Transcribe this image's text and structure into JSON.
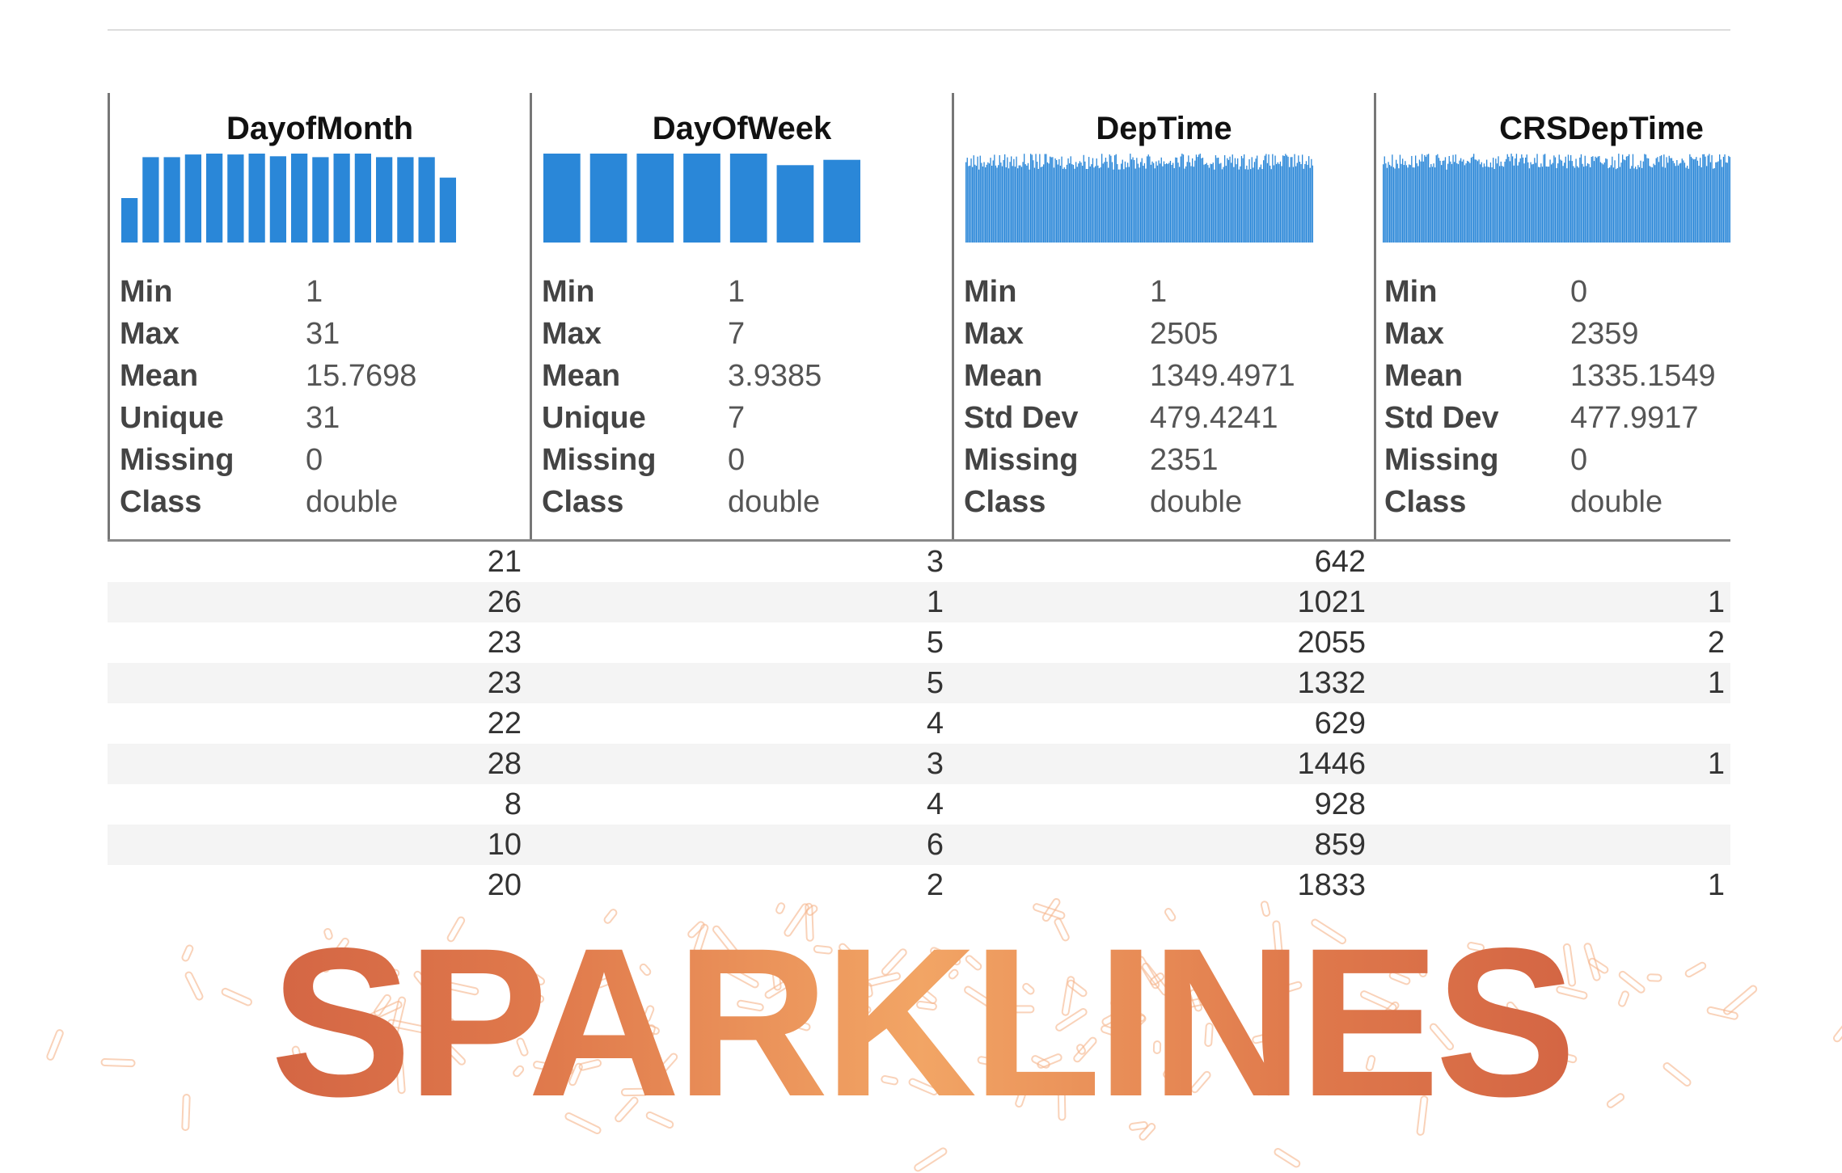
{
  "overlay_title": "SPARKLINES",
  "accent_color": "#2a87d8",
  "overlay_color": "#e07a4c",
  "columns": [
    {
      "title": "DayofMonth",
      "histogram": [
        0.5,
        0.96,
        0.96,
        0.99,
        1,
        0.99,
        1,
        0.97,
        1,
        0.96,
        1,
        1,
        0.96,
        0.96,
        0.96,
        0.73
      ],
      "stats": [
        {
          "label": "Min",
          "value": "1"
        },
        {
          "label": "Max",
          "value": "31"
        },
        {
          "label": "Mean",
          "value": "15.7698"
        },
        {
          "label": "Unique",
          "value": "31"
        },
        {
          "label": "Missing",
          "value": "0"
        },
        {
          "label": "Class",
          "value": "double"
        }
      ]
    },
    {
      "title": "DayOfWeek",
      "histogram": [
        1,
        1,
        1,
        1,
        1,
        0.87,
        0.93
      ],
      "stats": [
        {
          "label": "Min",
          "value": "1"
        },
        {
          "label": "Max",
          "value": "7"
        },
        {
          "label": "Mean",
          "value": "3.9385"
        },
        {
          "label": "Unique",
          "value": "7"
        },
        {
          "label": "Missing",
          "value": "0"
        },
        {
          "label": "Class",
          "value": "double"
        }
      ]
    },
    {
      "title": "DepTime",
      "histogram": "dense",
      "stats": [
        {
          "label": "Min",
          "value": "1"
        },
        {
          "label": "Max",
          "value": "2505"
        },
        {
          "label": "Mean",
          "value": "1349.4971"
        },
        {
          "label": "Std Dev",
          "value": "479.4241"
        },
        {
          "label": "Missing",
          "value": "2351"
        },
        {
          "label": "Class",
          "value": "double"
        }
      ]
    },
    {
      "title": "CRSDepTime",
      "histogram": "dense",
      "stats": [
        {
          "label": "Min",
          "value": "0"
        },
        {
          "label": "Max",
          "value": "2359"
        },
        {
          "label": "Mean",
          "value": "1335.1549"
        },
        {
          "label": "Std Dev",
          "value": "477.9917"
        },
        {
          "label": "Missing",
          "value": "0"
        },
        {
          "label": "Class",
          "value": "double"
        }
      ]
    }
  ],
  "rows": [
    [
      "21",
      "3",
      "642",
      ""
    ],
    [
      "26",
      "1",
      "1021",
      "1"
    ],
    [
      "23",
      "5",
      "2055",
      "2"
    ],
    [
      "23",
      "5",
      "1332",
      "1"
    ],
    [
      "22",
      "4",
      "629",
      ""
    ],
    [
      "28",
      "3",
      "1446",
      "1"
    ],
    [
      "8",
      "4",
      "928",
      ""
    ],
    [
      "10",
      "6",
      "859",
      ""
    ],
    [
      "20",
      "2",
      "1833",
      "1"
    ]
  ]
}
